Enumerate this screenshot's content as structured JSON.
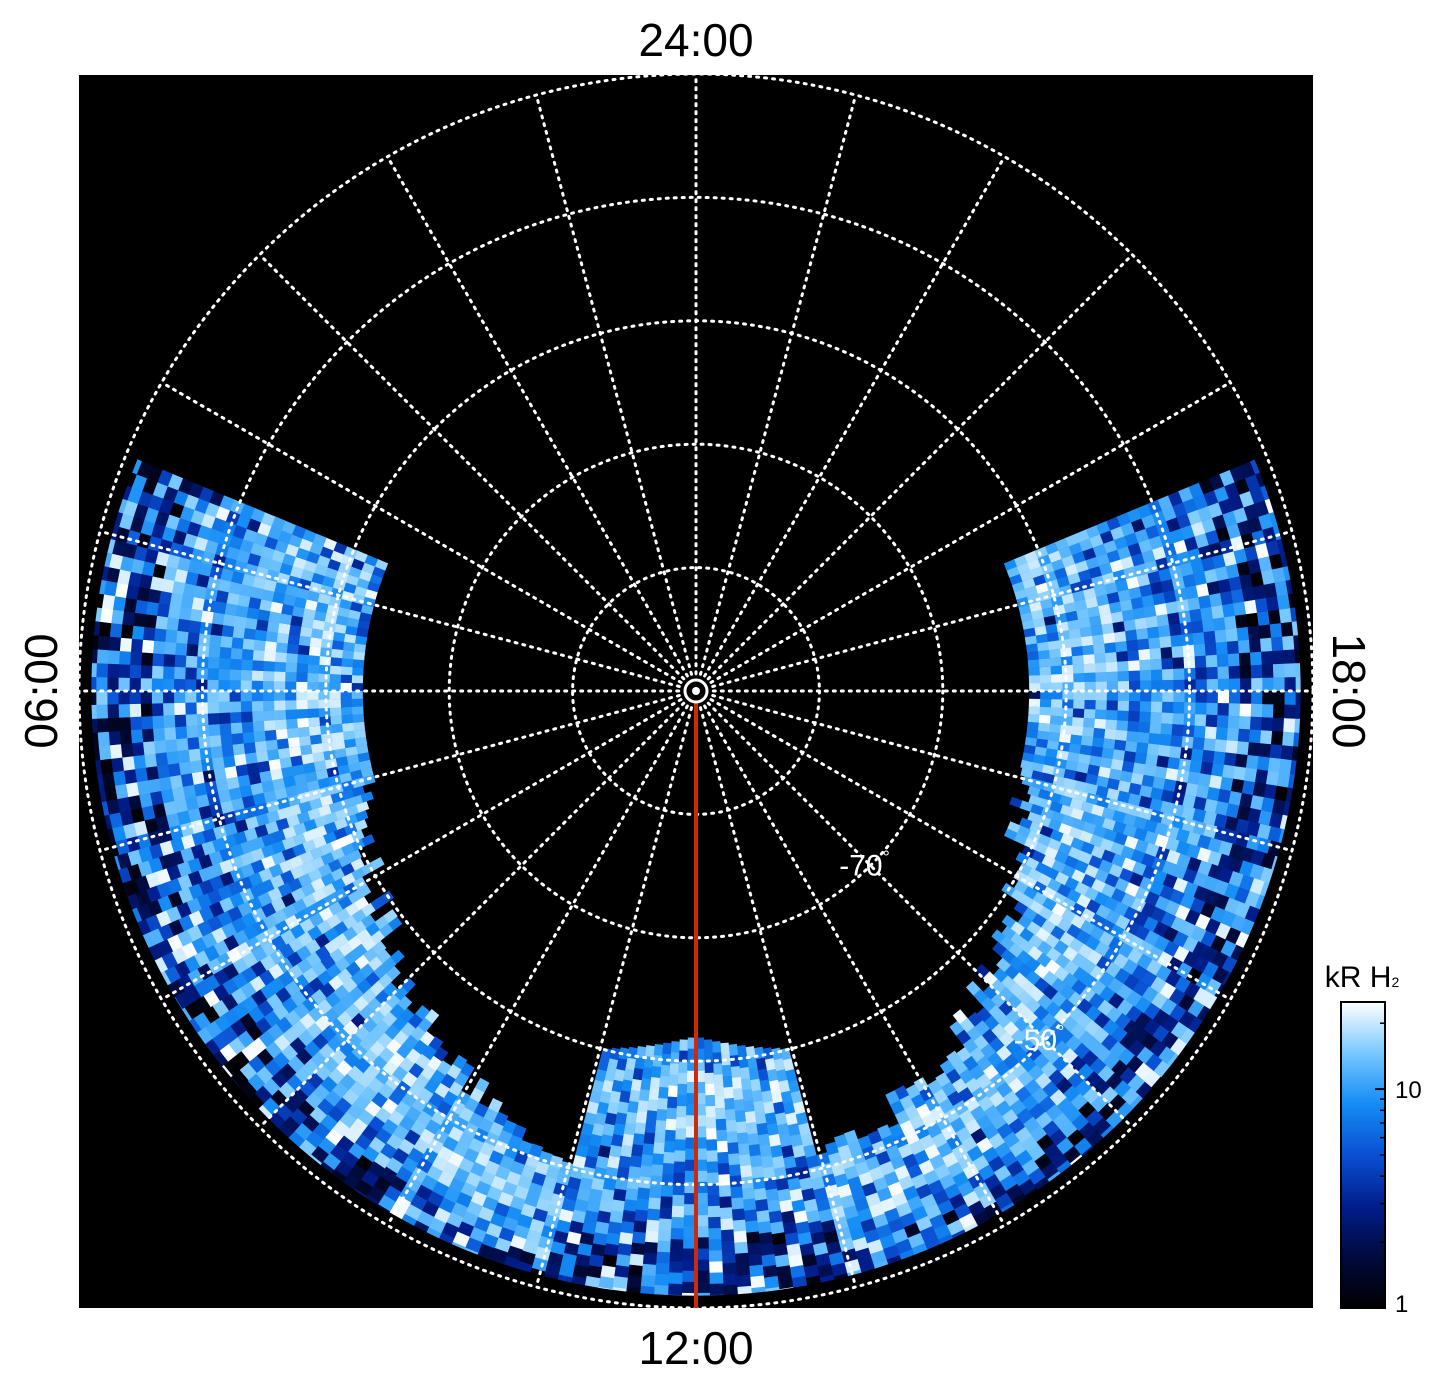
{
  "chart_data": {
    "type": "heatmap",
    "projection": "polar (south pole view, latitude vs local time)",
    "hemisphere": "south",
    "local_time_labels": {
      "top": "24:00",
      "bottom": "12:00",
      "left": "06:00",
      "right": "18:00"
    },
    "latitude_rings_deg": [
      -80,
      -70,
      -60,
      -50,
      -40
    ],
    "latitude_labels": [
      {
        "text": "-70",
        "degree": "°",
        "lat": -70,
        "local_time_h": 9.0
      },
      {
        "text": "-50",
        "degree": "°",
        "lat": -50,
        "local_time_h": 9.0
      }
    ],
    "meridian_step_h": 1,
    "background": "#000000",
    "grid_color": "#ffffff",
    "meridian_marker": {
      "local_time_h": 12,
      "lat_from": -89,
      "lat_to": -40,
      "color": "#cc2a0a"
    },
    "coverage": {
      "local_time_range_h": [
        4.5,
        19.5
      ],
      "lat_inner_edge_min_deg": -63,
      "lat_outer_edge_deg": -40,
      "note_level": "emission brightness in kR H2, mostly 3-20 kR"
    },
    "colorbar": {
      "title_main": "kR H",
      "title_sub": "2",
      "scale": "log",
      "range": [
        1,
        25
      ],
      "tick_labels": [
        {
          "text": "1",
          "value": 1
        },
        {
          "text": "10",
          "value": 10
        }
      ],
      "colors": [
        "#000000",
        "#000a3c",
        "#001e8c",
        "#0a50d2",
        "#148cf5",
        "#78c8ff",
        "#ffffff"
      ]
    }
  }
}
